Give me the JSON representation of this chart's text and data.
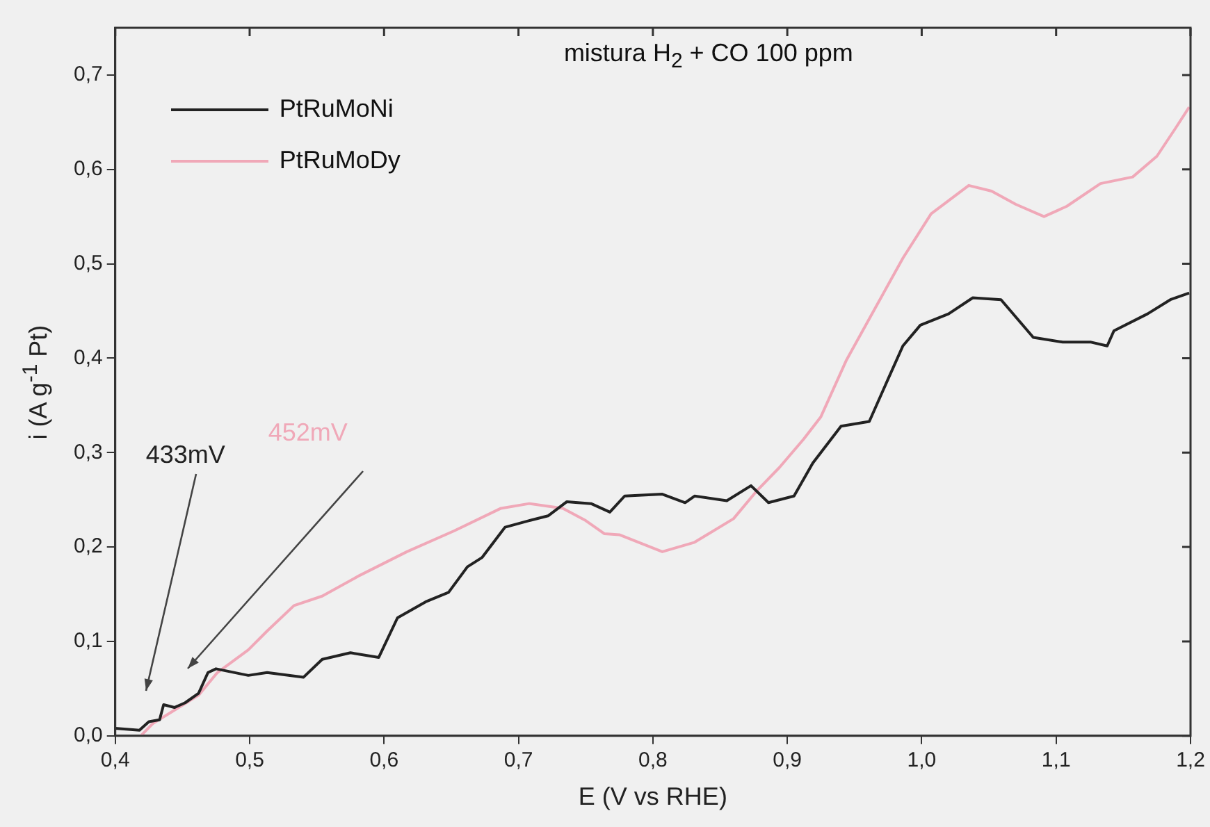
{
  "chart_data": {
    "type": "line",
    "title": "mistura H$_{2}$ + CO 100 ppm",
    "xlabel": "E (V vs RHE)",
    "ylabel": "i (A g$^{-1}$ Pt)",
    "xlim": [
      0.4,
      1.2
    ],
    "ylim": [
      0,
      0.75
    ],
    "xticks": [
      {
        "value": 0.4,
        "label": "0,4"
      },
      {
        "value": 0.5,
        "label": "0,5"
      },
      {
        "value": 0.6,
        "label": "0,6"
      },
      {
        "value": 0.7,
        "label": "0,7"
      },
      {
        "value": 0.8,
        "label": "0,8"
      },
      {
        "value": 0.9,
        "label": "0,9"
      },
      {
        "value": 1.0,
        "label": "1,0"
      },
      {
        "value": 1.1,
        "label": "1,1"
      },
      {
        "value": 1.2,
        "label": "1,2"
      }
    ],
    "yticks": [
      {
        "value": 0,
        "label": "0,0"
      },
      {
        "value": 0.1,
        "label": "0,1"
      },
      {
        "value": 0.2,
        "label": "0,2"
      },
      {
        "value": 0.3,
        "label": "0,3"
      },
      {
        "value": 0.4,
        "label": "0,4"
      },
      {
        "value": 0.5,
        "label": "0,5"
      },
      {
        "value": 0.6,
        "label": "0,6"
      },
      {
        "value": 0.7,
        "label": "0,7"
      }
    ],
    "legend": "top left",
    "series": [
      {
        "name": "PtRuMoNi",
        "color": "#222222",
        "x": [
          0.4,
          0.418,
          0.425,
          0.433,
          0.436,
          0.444,
          0.452,
          0.462,
          0.469,
          0.475,
          0.499,
          0.513,
          0.54,
          0.554,
          0.575,
          0.596,
          0.61,
          0.631,
          0.648,
          0.662,
          0.673,
          0.69,
          0.708,
          0.722,
          0.736,
          0.754,
          0.768,
          0.779,
          0.807,
          0.824,
          0.831,
          0.855,
          0.873,
          0.886,
          0.905,
          0.919,
          0.94,
          0.961,
          0.975,
          0.986,
          0.999,
          1.02,
          1.038,
          1.059,
          1.083,
          1.105,
          1.126,
          1.138,
          1.143,
          1.168,
          1.185,
          1.199
        ],
        "values": [
          0.008,
          0.006,
          0.015,
          0.017,
          0.033,
          0.03,
          0.035,
          0.045,
          0.067,
          0.071,
          0.064,
          0.067,
          0.062,
          0.081,
          0.088,
          0.083,
          0.125,
          0.142,
          0.152,
          0.179,
          0.189,
          0.221,
          0.228,
          0.233,
          0.248,
          0.246,
          0.237,
          0.254,
          0.256,
          0.247,
          0.254,
          0.249,
          0.265,
          0.247,
          0.254,
          0.289,
          0.328,
          0.333,
          0.378,
          0.413,
          0.435,
          0.447,
          0.464,
          0.462,
          0.422,
          0.417,
          0.417,
          0.413,
          0.429,
          0.447,
          0.462,
          0.469
        ]
      },
      {
        "name": "PtRuMoDy",
        "color": "#f0a8b8",
        "x": [
          0.419,
          0.428,
          0.445,
          0.462,
          0.476,
          0.499,
          0.513,
          0.533,
          0.554,
          0.582,
          0.617,
          0.652,
          0.687,
          0.708,
          0.733,
          0.75,
          0.764,
          0.775,
          0.807,
          0.831,
          0.86,
          0.877,
          0.894,
          0.912,
          0.925,
          0.944,
          0.965,
          0.986,
          1.007,
          1.035,
          1.052,
          1.07,
          1.091,
          1.108,
          1.133,
          1.157,
          1.175,
          1.189,
          1.199
        ],
        "values": [
          0,
          0.013,
          0.028,
          0.043,
          0.067,
          0.091,
          0.111,
          0.138,
          0.148,
          0.17,
          0.195,
          0.217,
          0.241,
          0.246,
          0.241,
          0.228,
          0.214,
          0.213,
          0.195,
          0.205,
          0.23,
          0.259,
          0.284,
          0.314,
          0.338,
          0.398,
          0.452,
          0.506,
          0.553,
          0.583,
          0.577,
          0.563,
          0.55,
          0.561,
          0.585,
          0.592,
          0.614,
          0.644,
          0.666
        ]
      }
    ],
    "annotations": [
      "433mV",
      "452mV"
    ]
  }
}
